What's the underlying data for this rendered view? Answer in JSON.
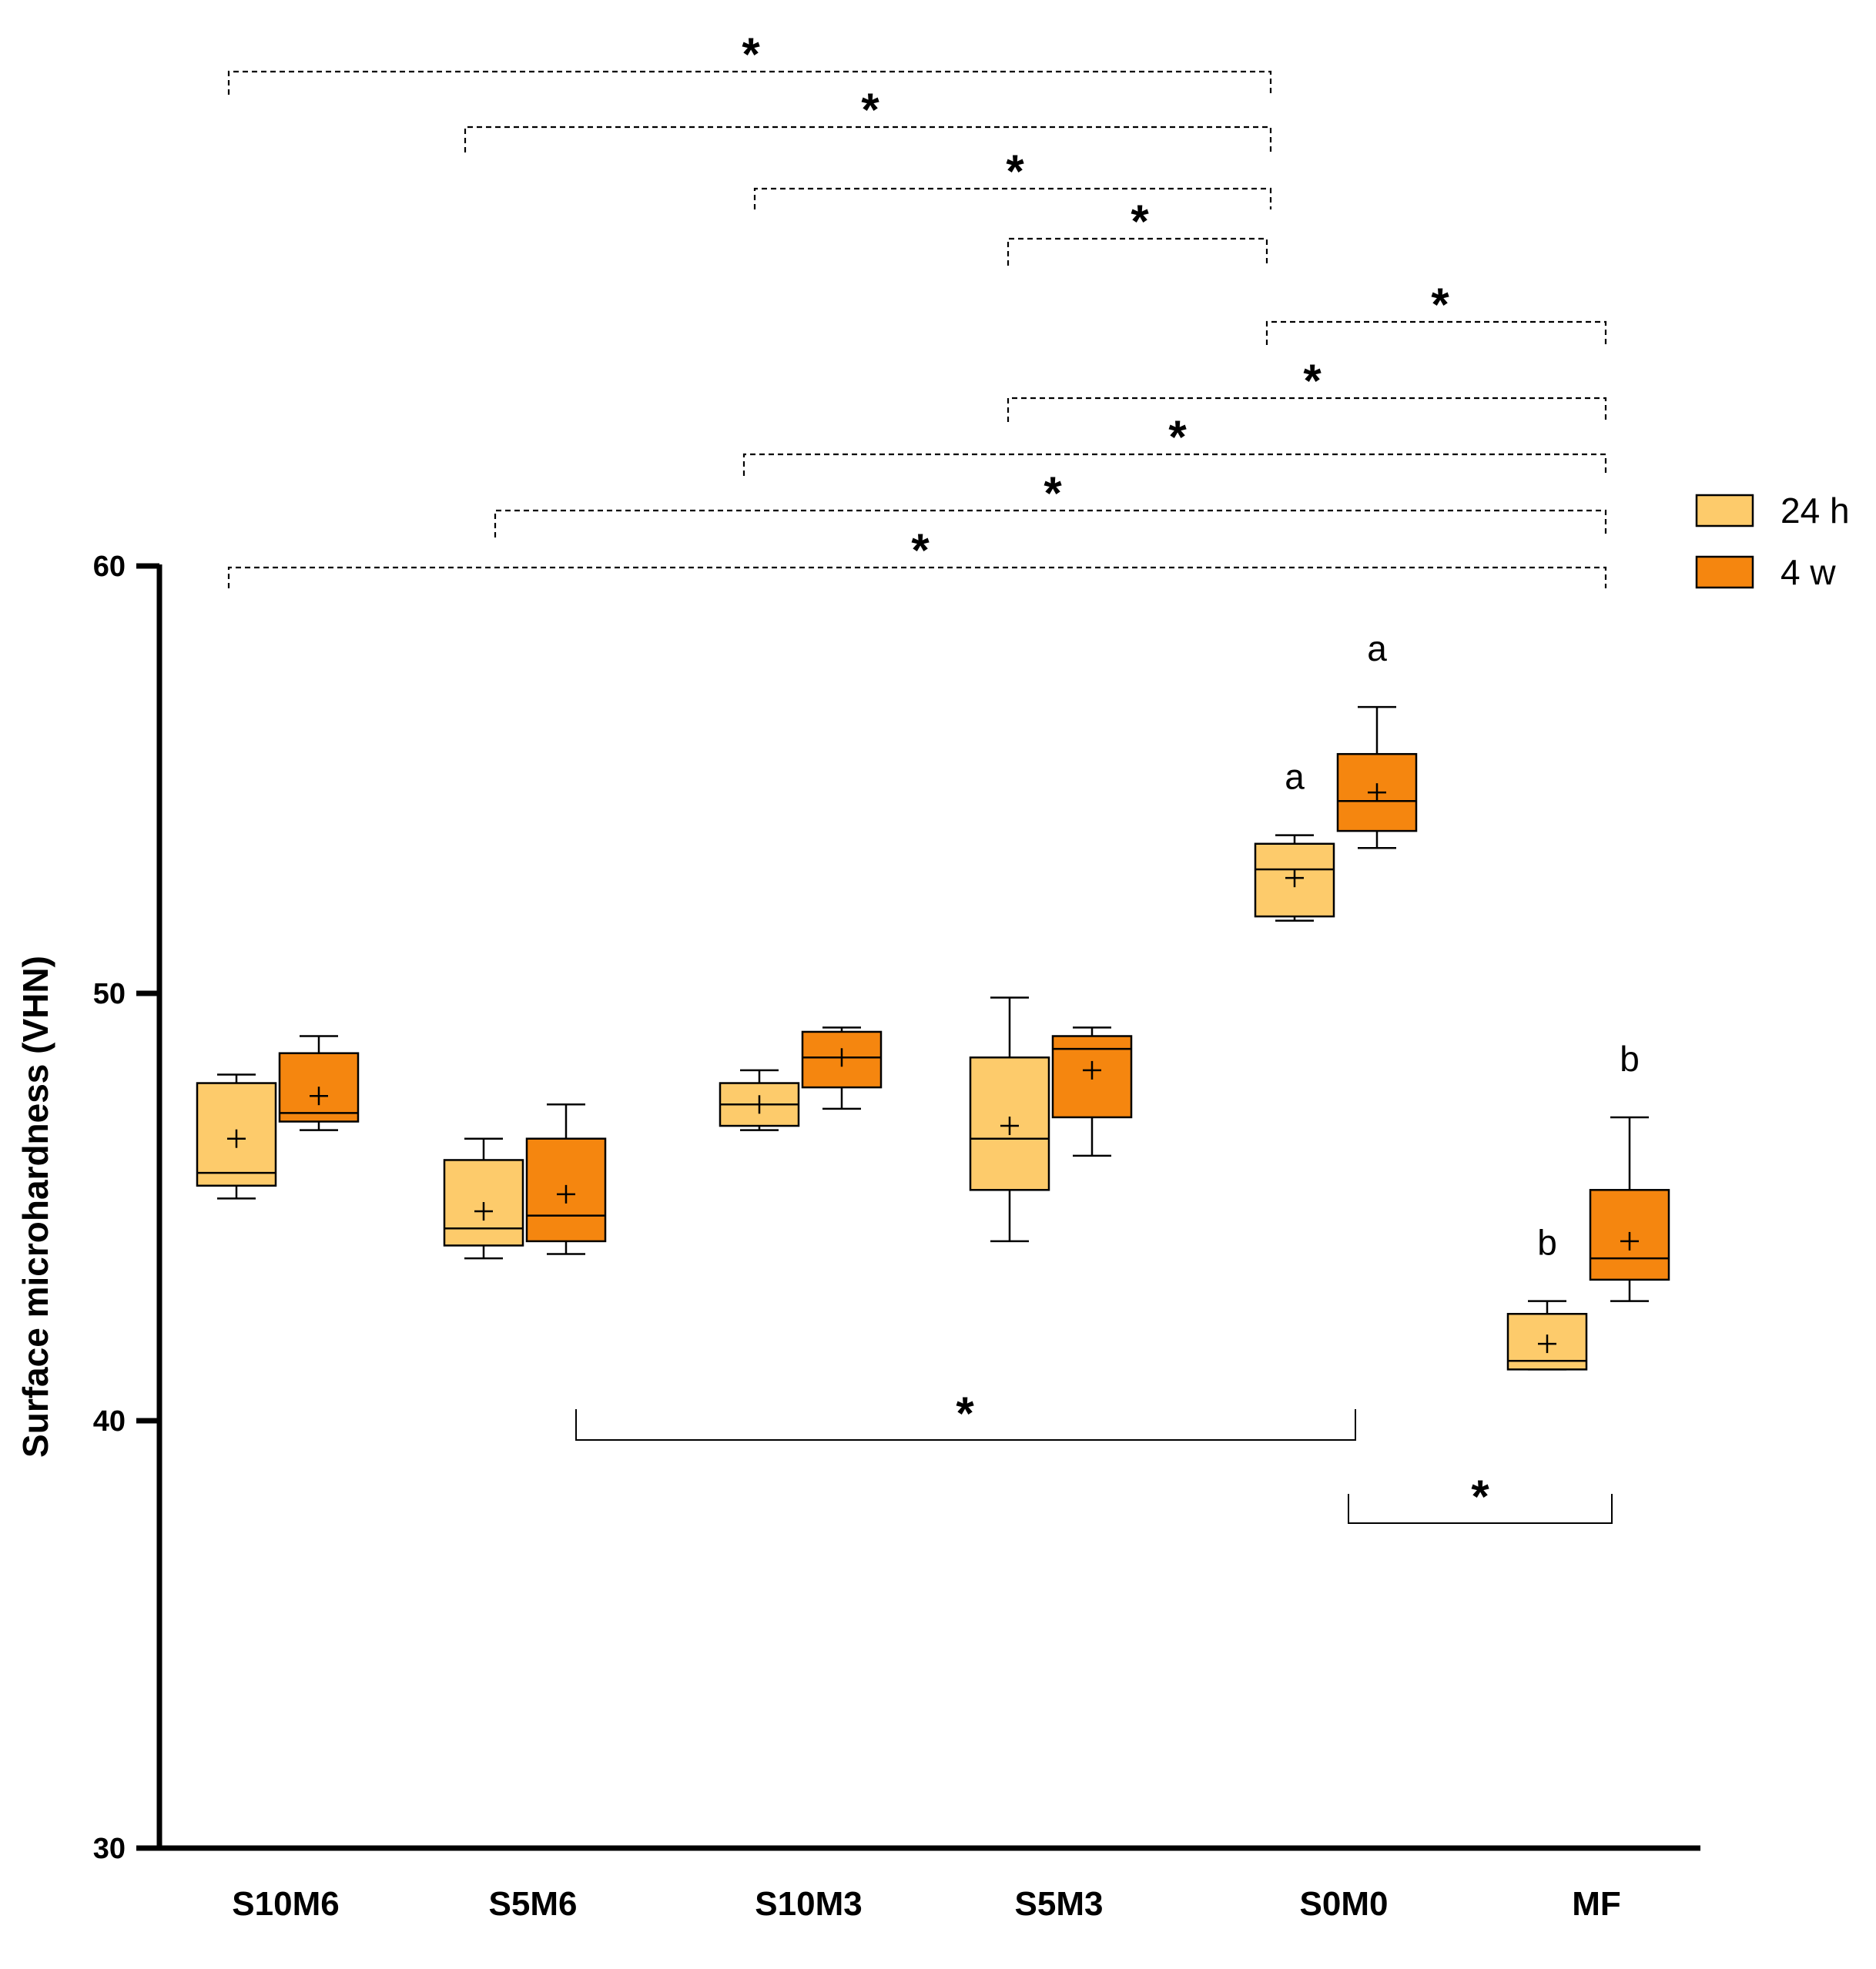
{
  "chart_data": {
    "type": "box",
    "title": "",
    "xlabel": "",
    "ylabel": "Surface microhardness (VHN)",
    "ylim": [
      30,
      60
    ],
    "yticks": [
      "30",
      "40",
      "50",
      "60"
    ],
    "categories": [
      "S10M6",
      "S5M6",
      "S10M3",
      "S5M3",
      "S0M0",
      "MF"
    ],
    "legend": {
      "position": "top-right",
      "entries": [
        {
          "name": "24 h",
          "color": "#FDCB6B"
        },
        {
          "name": "4 w",
          "color": "#F5860F"
        }
      ]
    },
    "series": [
      {
        "name": "24 h",
        "color": "#FDCB6B",
        "boxes": [
          {
            "category": "S10M6",
            "min": 45.2,
            "q1": 45.5,
            "median": 45.8,
            "q3": 47.9,
            "max": 48.1,
            "mean": 46.6,
            "label": ""
          },
          {
            "category": "S5M6",
            "min": 43.8,
            "q1": 44.1,
            "median": 44.5,
            "q3": 46.1,
            "max": 46.6,
            "mean": 44.9,
            "label": ""
          },
          {
            "category": "S10M3",
            "min": 46.8,
            "q1": 46.9,
            "median": 47.4,
            "q3": 47.9,
            "max": 48.2,
            "mean": 47.4,
            "label": ""
          },
          {
            "category": "S5M3",
            "min": 44.2,
            "q1": 45.4,
            "median": 46.6,
            "q3": 48.5,
            "max": 49.9,
            "mean": 46.9,
            "label": ""
          },
          {
            "category": "S0M0",
            "min": 51.7,
            "q1": 51.8,
            "median": 52.9,
            "q3": 53.5,
            "max": 53.7,
            "mean": 52.7,
            "label": "a"
          },
          {
            "category": "MF",
            "min": 41.2,
            "q1": 41.2,
            "median": 41.4,
            "q3": 42.5,
            "max": 42.8,
            "mean": 41.8,
            "label": "b"
          }
        ]
      },
      {
        "name": "4 w",
        "color": "#F5860F",
        "boxes": [
          {
            "category": "S10M6",
            "min": 46.8,
            "q1": 47.0,
            "median": 47.2,
            "q3": 48.6,
            "max": 49.0,
            "mean": 47.6,
            "label": ""
          },
          {
            "category": "S5M6",
            "min": 43.9,
            "q1": 44.2,
            "median": 44.8,
            "q3": 46.6,
            "max": 47.4,
            "mean": 45.3,
            "label": ""
          },
          {
            "category": "S10M3",
            "min": 47.3,
            "q1": 47.8,
            "median": 48.5,
            "q3": 49.1,
            "max": 49.2,
            "mean": 48.5,
            "label": ""
          },
          {
            "category": "S5M3",
            "min": 46.2,
            "q1": 47.1,
            "median": 48.7,
            "q3": 49.0,
            "max": 49.2,
            "mean": 48.2,
            "label": ""
          },
          {
            "category": "S0M0",
            "min": 53.4,
            "q1": 53.8,
            "median": 54.5,
            "q3": 55.6,
            "max": 56.7,
            "mean": 54.7,
            "label": "a"
          },
          {
            "category": "MF",
            "min": 42.8,
            "q1": 43.3,
            "median": 43.8,
            "q3": 45.4,
            "max": 47.1,
            "mean": 44.2,
            "label": "b"
          }
        ]
      }
    ],
    "significance_top": [
      {
        "from": "S10M6 (24 h)",
        "to": "S0M0 (24 h)",
        "marker": "*"
      },
      {
        "from": "S5M6 (24 h)",
        "to": "S0M0 (24 h)",
        "marker": "*"
      },
      {
        "from": "S10M3 (24 h)",
        "to": "S0M0 (24 h)",
        "marker": "*"
      },
      {
        "from": "S5M3 (24 h)",
        "to": "S0M0 (24 h)",
        "marker": "*"
      },
      {
        "from": "S0M0 (24 h)",
        "to": "MF (4 w)",
        "marker": "*"
      },
      {
        "from": "S5M3 (24 h)",
        "to": "MF (4 w)",
        "marker": "*"
      },
      {
        "from": "S10M3 (24 h)",
        "to": "MF (4 w)",
        "marker": "*"
      },
      {
        "from": "S5M6 (24 h)",
        "to": "MF (4 w)",
        "marker": "*"
      },
      {
        "from": "S10M6 (24 h)",
        "to": "MF (4 w)",
        "marker": "*"
      }
    ],
    "significance_bottom": [
      {
        "from": "S5M6 (4 w)",
        "to": "S0M0 (4 w)",
        "marker": "*"
      },
      {
        "from": "S0M0 (4 w)",
        "to": "MF (4 w)",
        "marker": "*"
      }
    ]
  }
}
